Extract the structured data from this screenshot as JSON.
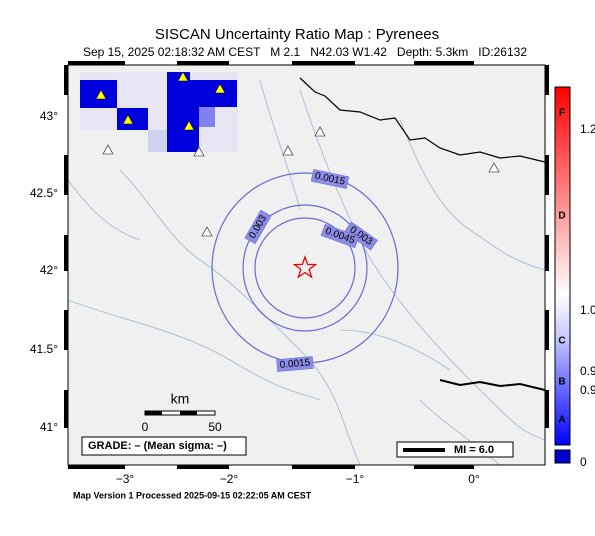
{
  "header": {
    "title": "SISCAN Uncertainty Ratio Map : Pyrenees",
    "subtitle": "Sep 15, 2025 02:18:32 AM CEST   M 2.1   N42.03 W1.42   Depth: 5.3km   ID:26132"
  },
  "map": {
    "lat_labels": [
      "43°",
      "42.5°",
      "42°",
      "41.5°",
      "41°"
    ],
    "lon_labels": [
      "−3°",
      "−2°",
      "−1°",
      "0°"
    ],
    "contour_labels": [
      "0.0015",
      "0.003",
      "0.003",
      "0.0045",
      "0.0015"
    ],
    "scale": {
      "title": "km",
      "ticks": [
        "0",
        "50"
      ]
    },
    "grade": "GRADE: – (Mean sigma: –)",
    "legend": "MI = 6.0"
  },
  "colorbar": {
    "letters": [
      "F",
      "D",
      "C",
      "B",
      "A"
    ],
    "labels": [
      "1.2",
      "1.0",
      "0.9",
      "0.9",
      "0"
    ]
  },
  "footer": "Map Version 1 Processed 2025-09-15 02:22:05 AM CEST"
}
